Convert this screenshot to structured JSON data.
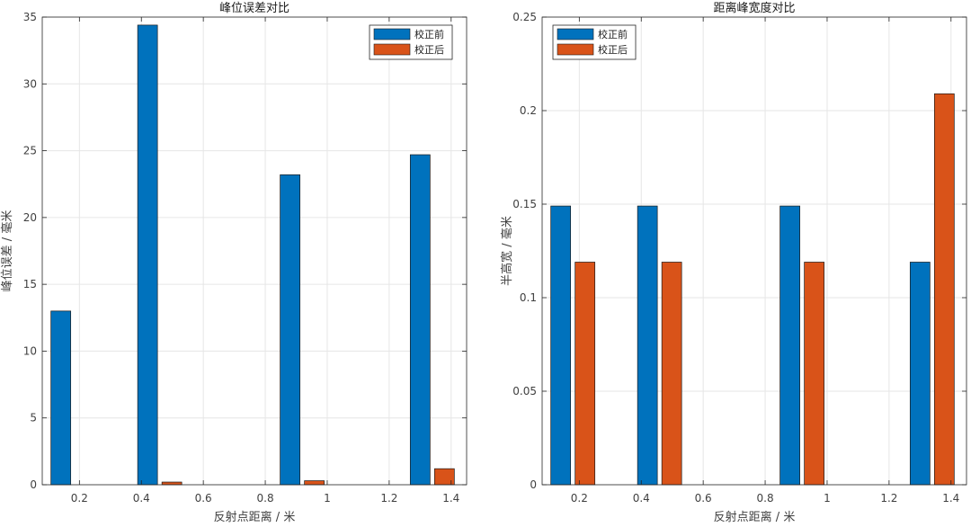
{
  "colors": {
    "before": "#0072BD",
    "after": "#D95319",
    "grid": "#e6e6e6",
    "axis": "#262626"
  },
  "chart_data": [
    {
      "type": "bar",
      "title": "峰位误差对比",
      "xlabel": "反射点距离 / 米",
      "ylabel": "峰位误差 / 毫米",
      "xlim": [
        0.08,
        1.45
      ],
      "ylim": [
        0,
        35
      ],
      "xticks": [
        0.2,
        0.4,
        0.6,
        0.8,
        1,
        1.2,
        1.4
      ],
      "xticklabels": [
        "0.2",
        "0.4",
        "0.6",
        "0.8",
        "1",
        "1.2",
        "1.4"
      ],
      "yticks": [
        0,
        5,
        10,
        15,
        20,
        25,
        30,
        35
      ],
      "yticklabels": [
        "0",
        "5",
        "10",
        "15",
        "20",
        "25",
        "30",
        "35"
      ],
      "grid": true,
      "legend_position": "top-right",
      "x": [
        0.14,
        0.42,
        0.88,
        1.3
      ],
      "series": [
        {
          "name": "校正前",
          "values": [
            13.0,
            34.4,
            23.2,
            24.7
          ]
        },
        {
          "name": "校正后",
          "values": [
            0,
            0.2,
            0.3,
            1.2
          ]
        }
      ]
    },
    {
      "type": "bar",
      "title": "距离峰宽度对比",
      "xlabel": "反射点距离 / 米",
      "ylabel": "半高宽 / 毫米",
      "xlim": [
        0.08,
        1.45
      ],
      "ylim": [
        0,
        0.25
      ],
      "xticks": [
        0.2,
        0.4,
        0.6,
        0.8,
        1,
        1.2,
        1.4
      ],
      "xticklabels": [
        "0.2",
        "0.4",
        "0.6",
        "0.8",
        "1",
        "1.2",
        "1.4"
      ],
      "yticks": [
        0,
        0.05,
        0.1,
        0.15,
        0.2,
        0.25
      ],
      "yticklabels": [
        "0",
        "0.05",
        "0.1",
        "0.15",
        "0.2",
        "0.25"
      ],
      "grid": true,
      "legend_position": "top-left",
      "x": [
        0.14,
        0.42,
        0.88,
        1.3
      ],
      "series": [
        {
          "name": "校正前",
          "values": [
            0.149,
            0.149,
            0.149,
            0.119
          ]
        },
        {
          "name": "校正后",
          "values": [
            0.119,
            0.119,
            0.119,
            0.209
          ]
        }
      ]
    }
  ]
}
